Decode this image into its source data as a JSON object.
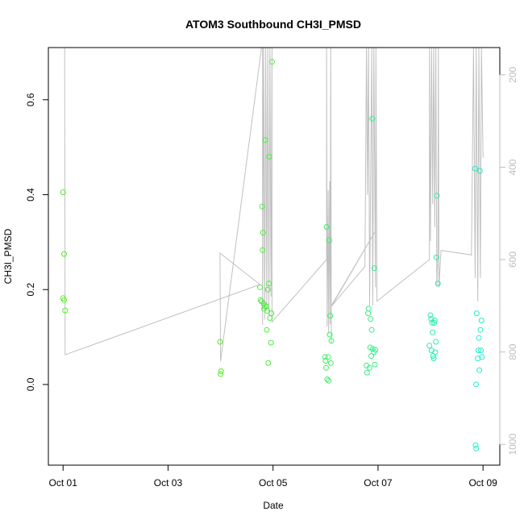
{
  "chart_data": {
    "type": "scatter",
    "title": "ATOM3 Southbound CH3I_PMSD",
    "xlabel": "Date",
    "ylabel": "CH3I_PMSD",
    "x_ticks": [
      "Oct 01",
      "Oct 03",
      "Oct 05",
      "Oct 07",
      "Oct 09"
    ],
    "x_tick_days": [
      1,
      3,
      5,
      7,
      9
    ],
    "xlim_days": [
      0.72,
      9.32
    ],
    "ylim": [
      -0.17,
      0.71
    ],
    "y_ticks": [
      0.0,
      0.2,
      0.4,
      0.6
    ],
    "y_tick_labels": [
      "0.0",
      "0.2",
      "0.4",
      "0.6"
    ],
    "y2_label": "",
    "y2_ticks": [
      200,
      400,
      600,
      800,
      1000
    ],
    "y2_tick_labels": [
      "200",
      "400",
      "600",
      "800",
      "1000"
    ],
    "y2lim": [
      1045,
      141
    ],
    "point_color_start": "#55ee22",
    "point_color_end": "#22eecc",
    "line_color": "#c0c0c0",
    "points": [
      [
        1.0,
        0.405
      ],
      [
        1.02,
        0.275
      ],
      [
        1.0,
        0.182
      ],
      [
        1.02,
        0.178
      ],
      [
        1.04,
        0.156
      ],
      [
        3.99,
        0.09
      ],
      [
        4.0,
        0.022
      ],
      [
        4.01,
        0.028
      ],
      [
        4.75,
        0.205
      ],
      [
        4.76,
        0.178
      ],
      [
        4.78,
        0.175
      ],
      [
        4.79,
        0.375
      ],
      [
        4.8,
        0.283
      ],
      [
        4.81,
        0.32
      ],
      [
        4.82,
        0.17
      ],
      [
        4.83,
        0.16
      ],
      [
        4.84,
        0.165
      ],
      [
        4.85,
        0.515
      ],
      [
        4.87,
        0.165
      ],
      [
        4.88,
        0.115
      ],
      [
        4.89,
        0.155
      ],
      [
        4.9,
        0.2
      ],
      [
        4.91,
        0.045
      ],
      [
        4.92,
        0.213
      ],
      [
        4.93,
        0.48
      ],
      [
        4.94,
        0.14
      ],
      [
        4.96,
        0.088
      ],
      [
        4.97,
        0.15
      ],
      [
        4.98,
        0.68
      ],
      [
        5.99,
        0.058
      ],
      [
        6.0,
        0.05
      ],
      [
        6.01,
        0.035
      ],
      [
        6.02,
        0.332
      ],
      [
        6.03,
        0.011
      ],
      [
        6.05,
        0.058
      ],
      [
        6.06,
        0.008
      ],
      [
        6.07,
        0.304
      ],
      [
        6.08,
        0.105
      ],
      [
        6.09,
        0.145
      ],
      [
        6.1,
        0.045
      ],
      [
        6.11,
        0.092
      ],
      [
        6.78,
        0.04
      ],
      [
        6.79,
        0.025
      ],
      [
        6.81,
        0.15
      ],
      [
        6.82,
        0.16
      ],
      [
        6.84,
        0.035
      ],
      [
        6.85,
        0.078
      ],
      [
        6.86,
        0.138
      ],
      [
        6.87,
        0.06
      ],
      [
        6.88,
        0.115
      ],
      [
        6.89,
        0.56
      ],
      [
        6.9,
        0.075
      ],
      [
        6.92,
        0.068
      ],
      [
        6.93,
        0.245
      ],
      [
        6.94,
        0.042
      ],
      [
        6.95,
        0.073
      ],
      [
        7.98,
        0.082
      ],
      [
        8.0,
        0.146
      ],
      [
        8.01,
        0.138
      ],
      [
        8.02,
        0.072
      ],
      [
        8.03,
        0.13
      ],
      [
        8.04,
        0.11
      ],
      [
        8.05,
        0.06
      ],
      [
        8.06,
        0.055
      ],
      [
        8.07,
        0.13
      ],
      [
        8.08,
        0.135
      ],
      [
        8.09,
        0.068
      ],
      [
        8.1,
        0.09
      ],
      [
        8.11,
        0.268
      ],
      [
        8.12,
        0.398
      ],
      [
        8.14,
        0.213
      ],
      [
        8.85,
        0.455
      ],
      [
        8.86,
        -0.128
      ],
      [
        8.87,
        -0.135
      ],
      [
        8.87,
        0.0
      ],
      [
        8.88,
        0.15
      ],
      [
        8.9,
        0.055
      ],
      [
        8.91,
        0.072
      ],
      [
        8.92,
        0.098
      ],
      [
        8.93,
        0.03
      ],
      [
        8.94,
        0.45
      ],
      [
        8.95,
        0.115
      ],
      [
        8.96,
        0.072
      ],
      [
        8.97,
        0.135
      ],
      [
        8.98,
        0.058
      ]
    ],
    "altitude_track": [
      [
        1.0,
        141
      ],
      [
        1.03,
        141
      ],
      [
        1.04,
        806
      ],
      [
        4.75,
        654
      ],
      [
        4.75,
        654
      ],
      [
        3.99,
        586
      ],
      [
        3.99,
        586
      ],
      [
        4.0,
        820
      ],
      [
        4.0,
        820
      ],
      [
        4.78,
        141
      ],
      [
        4.8,
        141
      ],
      [
        4.8,
        741
      ],
      [
        4.82,
        141
      ],
      [
        4.84,
        730
      ],
      [
        4.86,
        141
      ],
      [
        4.88,
        700
      ],
      [
        4.9,
        141
      ],
      [
        4.92,
        720
      ],
      [
        4.94,
        141
      ],
      [
        4.96,
        680
      ],
      [
        4.98,
        141
      ],
      [
        4.98,
        735
      ],
      [
        6.02,
        600
      ],
      [
        6.02,
        141
      ],
      [
        6.03,
        745
      ],
      [
        6.05,
        450
      ],
      [
        6.06,
        760
      ],
      [
        6.08,
        430
      ],
      [
        6.09,
        740
      ],
      [
        6.1,
        141
      ],
      [
        6.11,
        780
      ],
      [
        6.11,
        700
      ],
      [
        6.95,
        538
      ],
      [
        6.95,
        538
      ],
      [
        6.12,
        700
      ],
      [
        6.75,
        615
      ],
      [
        6.78,
        141
      ],
      [
        6.8,
        460
      ],
      [
        6.82,
        141
      ],
      [
        6.84,
        700
      ],
      [
        6.86,
        420
      ],
      [
        6.88,
        141
      ],
      [
        6.9,
        700
      ],
      [
        6.92,
        141
      ],
      [
        6.95,
        660
      ],
      [
        6.96,
        141
      ],
      [
        6.98,
        690
      ],
      [
        7.98,
        600
      ],
      [
        7.98,
        141
      ],
      [
        8.0,
        560
      ],
      [
        8.02,
        141
      ],
      [
        8.04,
        480
      ],
      [
        8.06,
        141
      ],
      [
        8.08,
        530
      ],
      [
        8.1,
        141
      ],
      [
        8.12,
        660
      ],
      [
        8.14,
        590
      ],
      [
        8.15,
        141
      ],
      [
        8.16,
        660
      ],
      [
        8.2,
        580
      ],
      [
        8.78,
        590
      ],
      [
        8.82,
        141
      ],
      [
        8.85,
        640
      ],
      [
        8.87,
        141
      ],
      [
        8.9,
        690
      ],
      [
        8.92,
        141
      ],
      [
        8.95,
        640
      ],
      [
        8.97,
        141
      ],
      [
        9.0,
        380
      ]
    ]
  }
}
